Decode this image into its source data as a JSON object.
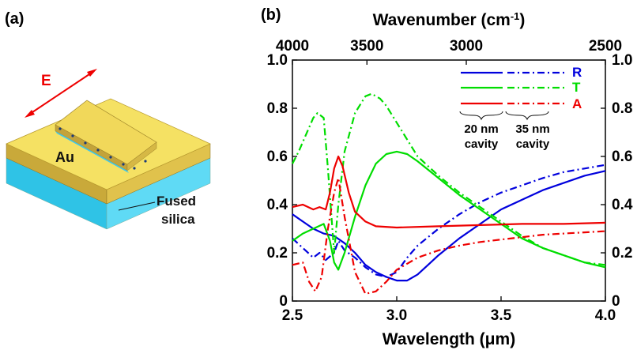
{
  "panel_a": {
    "label": "(a)",
    "efield_label": "E",
    "metal_label": "Au",
    "substrate_label_line1": "Fused",
    "substrate_label_line2": "silica"
  },
  "panel_b": {
    "label": "(b)"
  },
  "colors": {
    "R": "#0000dd",
    "T": "#00dd00",
    "A": "#ee0000",
    "gold_top": "#f5e163",
    "silica_side": "#4cd0ee"
  },
  "chart_data": {
    "type": "line",
    "xlabel": "Wavelength (μm)",
    "x_top_label_base": "Wavenumber (cm",
    "x_top_label_sup": "-1",
    "x_top_label_end": ")",
    "xlim": [
      2.5,
      4.0
    ],
    "ylim": [
      0,
      1.0
    ],
    "x_ticks": [
      {
        "value": 2.5,
        "label": "2.5"
      },
      {
        "value": 3.0,
        "label": "3.0"
      },
      {
        "value": 3.5,
        "label": "3.5"
      },
      {
        "value": 4.0,
        "label": "4.0"
      }
    ],
    "y_ticks": [
      {
        "value": 0,
        "label": "0"
      },
      {
        "value": 0.2,
        "label": "0.2"
      },
      {
        "value": 0.4,
        "label": "0.4"
      },
      {
        "value": 0.6,
        "label": "0.6"
      },
      {
        "value": 0.8,
        "label": "0.8"
      },
      {
        "value": 1.0,
        "label": "1.0"
      }
    ],
    "top_ticks": [
      {
        "wavenumber": 4000,
        "label": "4000"
      },
      {
        "wavenumber": 3500,
        "label": "3500"
      },
      {
        "wavenumber": 3000,
        "label": "3000"
      },
      {
        "wavenumber": 2500,
        "label": "2500"
      }
    ],
    "legend": {
      "entries": [
        "R",
        "T",
        "A"
      ],
      "solid_caption_line1": "20 nm",
      "solid_caption_line2": "cavity",
      "dashed_caption_line1": "35 nm",
      "dashed_caption_line2": "cavity"
    },
    "series": [
      {
        "name": "R",
        "cavity": "20 nm",
        "style": "solid",
        "color": "#0000dd",
        "x": [
          2.5,
          2.55,
          2.6,
          2.65,
          2.7,
          2.75,
          2.8,
          2.85,
          2.9,
          2.95,
          3.0,
          3.05,
          3.1,
          3.15,
          3.2,
          3.3,
          3.4,
          3.5,
          3.6,
          3.7,
          3.8,
          3.9,
          4.0
        ],
        "y": [
          0.36,
          0.33,
          0.3,
          0.28,
          0.27,
          0.24,
          0.2,
          0.15,
          0.12,
          0.1,
          0.085,
          0.085,
          0.11,
          0.15,
          0.19,
          0.26,
          0.32,
          0.38,
          0.42,
          0.46,
          0.49,
          0.52,
          0.54
        ]
      },
      {
        "name": "R",
        "cavity": "35 nm",
        "style": "dashdot",
        "color": "#0000dd",
        "x": [
          2.5,
          2.55,
          2.6,
          2.63,
          2.66,
          2.7,
          2.72,
          2.75,
          2.8,
          2.85,
          2.9,
          2.95,
          3.0,
          3.05,
          3.1,
          3.2,
          3.3,
          3.4,
          3.5,
          3.6,
          3.7,
          3.8,
          3.9,
          4.0
        ],
        "y": [
          0.26,
          0.22,
          0.18,
          0.2,
          0.17,
          0.2,
          0.25,
          0.21,
          0.18,
          0.14,
          0.11,
          0.1,
          0.12,
          0.18,
          0.23,
          0.3,
          0.36,
          0.41,
          0.45,
          0.48,
          0.51,
          0.535,
          0.55,
          0.565
        ]
      },
      {
        "name": "T",
        "cavity": "20 nm",
        "style": "solid",
        "color": "#00dd00",
        "x": [
          2.5,
          2.55,
          2.6,
          2.65,
          2.68,
          2.7,
          2.72,
          2.75,
          2.8,
          2.85,
          2.9,
          2.95,
          3.0,
          3.05,
          3.1,
          3.2,
          3.3,
          3.4,
          3.5,
          3.6,
          3.7,
          3.8,
          3.9,
          4.0
        ],
        "y": [
          0.25,
          0.28,
          0.3,
          0.32,
          0.25,
          0.16,
          0.13,
          0.2,
          0.35,
          0.48,
          0.57,
          0.61,
          0.62,
          0.61,
          0.58,
          0.51,
          0.44,
          0.38,
          0.32,
          0.26,
          0.22,
          0.19,
          0.16,
          0.14
        ]
      },
      {
        "name": "T",
        "cavity": "35 nm",
        "style": "dashdot",
        "color": "#00dd00",
        "x": [
          2.5,
          2.53,
          2.56,
          2.6,
          2.62,
          2.65,
          2.67,
          2.7,
          2.72,
          2.75,
          2.8,
          2.85,
          2.88,
          2.92,
          2.95,
          3.0,
          3.1,
          3.2,
          3.3,
          3.4,
          3.5,
          3.6,
          3.7,
          3.8,
          3.9,
          4.0
        ],
        "y": [
          0.57,
          0.62,
          0.68,
          0.76,
          0.78,
          0.76,
          0.55,
          0.2,
          0.4,
          0.62,
          0.78,
          0.85,
          0.86,
          0.84,
          0.81,
          0.74,
          0.6,
          0.52,
          0.45,
          0.39,
          0.33,
          0.27,
          0.22,
          0.19,
          0.16,
          0.15
        ]
      },
      {
        "name": "A",
        "cavity": "20 nm",
        "style": "solid",
        "color": "#ee0000",
        "x": [
          2.5,
          2.55,
          2.6,
          2.63,
          2.66,
          2.68,
          2.7,
          2.72,
          2.74,
          2.77,
          2.8,
          2.85,
          2.9,
          3.0,
          3.2,
          3.4,
          3.6,
          3.8,
          4.0
        ],
        "y": [
          0.39,
          0.4,
          0.38,
          0.39,
          0.38,
          0.45,
          0.55,
          0.6,
          0.56,
          0.45,
          0.37,
          0.33,
          0.31,
          0.305,
          0.31,
          0.315,
          0.32,
          0.32,
          0.325
        ]
      },
      {
        "name": "A",
        "cavity": "35 nm",
        "style": "dashdot",
        "color": "#ee0000",
        "x": [
          2.5,
          2.55,
          2.58,
          2.61,
          2.64,
          2.67,
          2.7,
          2.72,
          2.75,
          2.8,
          2.85,
          2.9,
          2.95,
          3.0,
          3.1,
          3.2,
          3.3,
          3.4,
          3.5,
          3.6,
          3.7,
          3.8,
          3.9,
          4.0
        ],
        "y": [
          0.15,
          0.16,
          0.08,
          0.04,
          0.1,
          0.3,
          0.45,
          0.51,
          0.35,
          0.12,
          0.03,
          0.04,
          0.08,
          0.13,
          0.18,
          0.21,
          0.23,
          0.245,
          0.255,
          0.265,
          0.275,
          0.28,
          0.285,
          0.29
        ]
      }
    ]
  }
}
